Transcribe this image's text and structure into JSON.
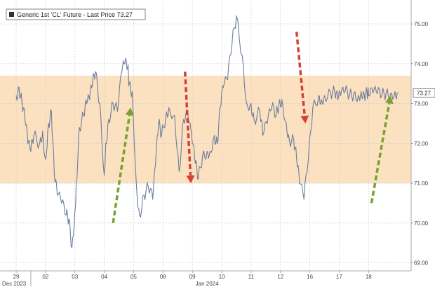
{
  "chart_data": {
    "type": "line",
    "title": "",
    "xlabel": "",
    "ylabel": "",
    "legend": {
      "label": "Generic 1st 'CL' Future - Last Price 73.27",
      "placement": "top-left"
    },
    "last_price": 73.27,
    "ylim": [
      68.8,
      75.6
    ],
    "y_ticks": [
      "69.00",
      "70.00",
      "71.00",
      "72.00",
      "73.00",
      "74.00",
      "75.00"
    ],
    "x_ticks": [
      "29",
      "02",
      "03",
      "04",
      "05",
      "08",
      "09",
      "10",
      "11",
      "12",
      "16",
      "17",
      "18"
    ],
    "x_group_labels": [
      "Dec 2023",
      "Jan 2024"
    ],
    "grid": true,
    "band": {
      "low": 71.0,
      "high": 73.7,
      "color": "#fad9b0"
    },
    "series": [
      {
        "color": "#6b7d9e",
        "x": [
          0,
          0.1,
          0.2,
          0.3,
          0.4,
          0.5,
          0.6,
          0.8,
          0.9,
          1.0,
          1.1,
          1.2,
          1.3,
          1.4,
          1.55,
          1.7,
          1.8,
          1.9,
          2.0,
          2.05,
          2.15,
          2.3,
          2.4,
          2.5,
          2.6,
          2.7,
          2.85,
          3.0,
          3.05,
          3.15,
          3.3,
          3.45,
          3.6,
          3.7,
          3.8,
          3.85,
          3.95,
          4.1,
          4.2,
          4.35,
          4.5,
          4.65,
          4.75,
          4.85,
          4.95,
          5.1,
          5.2,
          5.4,
          5.55,
          5.7,
          5.85,
          6.0,
          6.1,
          6.2,
          6.35,
          6.5,
          6.6,
          6.75,
          6.85,
          6.95,
          7.05,
          7.2,
          7.35,
          7.5,
          7.7,
          7.85,
          8.0,
          8.1,
          8.3,
          8.4,
          8.55,
          8.7,
          8.85,
          8.95,
          9.05,
          9.2,
          9.3,
          9.45,
          9.55,
          9.65,
          9.8,
          9.95,
          10.1,
          10.3,
          10.4,
          10.5,
          10.7,
          10.85,
          10.95,
          11.05,
          11.2,
          11.35,
          11.5,
          11.65,
          11.75,
          11.85,
          11.95,
          12.0,
          12.15,
          12.3,
          12.45,
          12.6,
          12.75,
          12.9,
          13.0
        ],
        "values": [
          73.2,
          73.4,
          73.0,
          72.6,
          72.0,
          71.8,
          72.2,
          72.0,
          72.3,
          71.6,
          72.5,
          72.8,
          71.2,
          70.7,
          70.5,
          70.2,
          70.1,
          69.4,
          70.3,
          71.0,
          72.4,
          72.7,
          73.0,
          73.1,
          73.5,
          73.8,
          73.0,
          71.2,
          72.0,
          72.6,
          73.0,
          72.8,
          73.8,
          74.0,
          73.9,
          73.5,
          73.3,
          70.9,
          70.2,
          70.7,
          70.9,
          70.6,
          71.5,
          72.5,
          72.2,
          72.7,
          72.9,
          72.7,
          71.3,
          72.6,
          72.7,
          72.0,
          71.5,
          71.1,
          71.7,
          71.8,
          71.8,
          72.2,
          72.0,
          72.9,
          73.4,
          73.6,
          74.5,
          75.2,
          74.2,
          73.0,
          73.0,
          72.6,
          72.8,
          72.2,
          72.5,
          72.9,
          72.7,
          73.0,
          73.1,
          72.5,
          72.1,
          72.1,
          71.6,
          71.0,
          70.6,
          71.6,
          72.9,
          73.2,
          73.1,
          73.2,
          73.3,
          73.27,
          73.1,
          73.2,
          73.3,
          73.2,
          73.25,
          73.2,
          73.3,
          73.25,
          73.27,
          73.2,
          73.27,
          73.25,
          73.2,
          73.27,
          73.25,
          73.3,
          73.27
        ]
      }
    ],
    "annotations": [
      {
        "type": "arrow",
        "color": "#7aa12e",
        "from": [
          3.3,
          70.0
        ],
        "to": [
          3.9,
          72.9
        ]
      },
      {
        "type": "arrow",
        "color": "#d64036",
        "from": [
          5.75,
          73.8
        ],
        "to": [
          5.95,
          71.0
        ]
      },
      {
        "type": "arrow",
        "color": "#d64036",
        "from": [
          9.55,
          74.8
        ],
        "to": [
          9.85,
          72.5
        ]
      },
      {
        "type": "arrow",
        "color": "#7aa12e",
        "from": [
          12.1,
          70.5
        ],
        "to": [
          12.75,
          73.2
        ]
      }
    ]
  }
}
